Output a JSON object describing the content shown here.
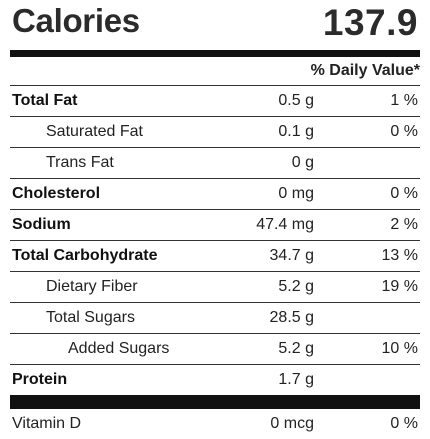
{
  "calories": {
    "label": "Calories",
    "value": "137.9"
  },
  "header": {
    "daily_value": "% Daily Value*"
  },
  "nutrients": [
    {
      "name": "Total Fat",
      "amount": "0.5 g",
      "dv": "1 %"
    },
    {
      "name": "Saturated Fat",
      "amount": "0.1 g",
      "dv": "0 %"
    },
    {
      "name": "Trans Fat",
      "amount": "0 g",
      "dv": ""
    },
    {
      "name": "Cholesterol",
      "amount": "0 mg",
      "dv": "0 %"
    },
    {
      "name": "Sodium",
      "amount": "47.4 mg",
      "dv": "2 %"
    },
    {
      "name": "Total Carbohydrate",
      "amount": "34.7 g",
      "dv": "13 %"
    },
    {
      "name": "Dietary Fiber",
      "amount": "5.2 g",
      "dv": "19 %"
    },
    {
      "name": "Total Sugars",
      "amount": "28.5 g",
      "dv": ""
    },
    {
      "name": "Added Sugars",
      "amount": "5.2 g",
      "dv": "10 %"
    },
    {
      "name": "Protein",
      "amount": "1.7 g",
      "dv": ""
    }
  ],
  "vitamins": [
    {
      "name": "Vitamin D",
      "amount": "0 mcg",
      "dv": "0 %"
    }
  ]
}
